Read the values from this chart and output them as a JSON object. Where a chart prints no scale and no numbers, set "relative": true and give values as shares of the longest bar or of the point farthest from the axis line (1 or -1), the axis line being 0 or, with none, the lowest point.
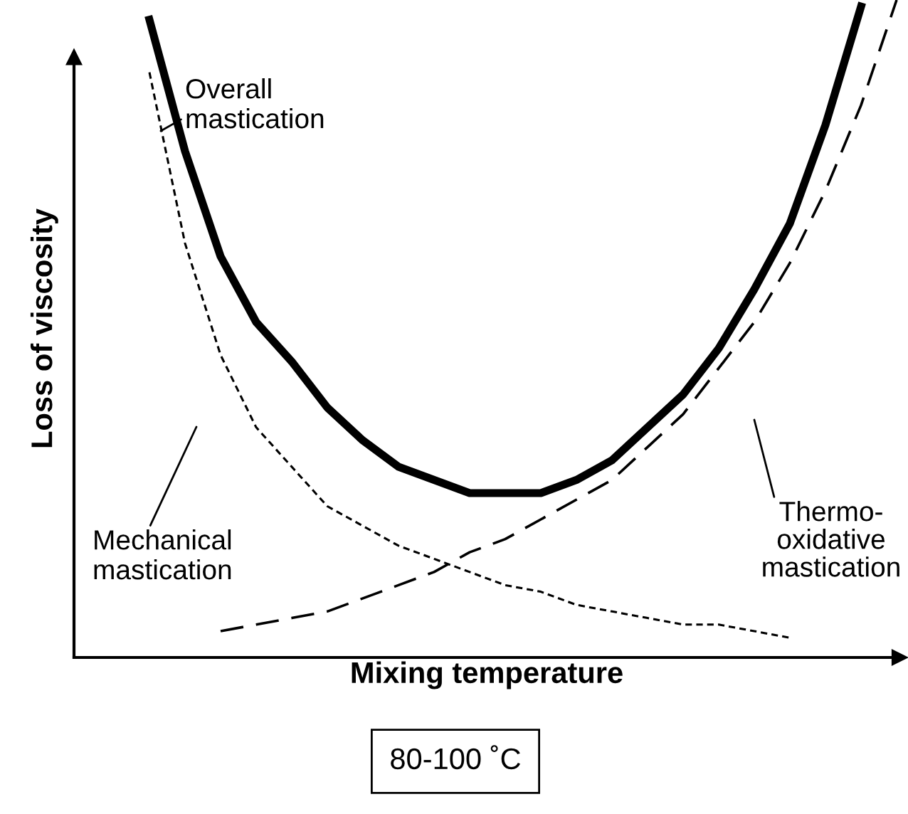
{
  "chart_data": {
    "type": "line",
    "relative": true,
    "xlabel": "Mixing temperature",
    "ylabel": "Loss of viscosity",
    "categories": [
      null,
      null,
      null,
      null,
      null,
      null,
      null,
      null,
      null,
      null,
      null,
      null,
      null,
      null,
      null,
      null,
      null,
      null,
      null,
      null,
      null,
      null,
      null
    ],
    "series": [
      {
        "color": "#000000",
        "line_style": "solid",
        "values": [
          null,
          0.97,
          0.77,
          0.61,
          0.51,
          0.45,
          0.38,
          0.33,
          0.29,
          0.27,
          0.25,
          0.25,
          0.25,
          0.27,
          0.3,
          0.35,
          0.4,
          0.47,
          0.56,
          0.66,
          0.81,
          0.99,
          null
        ]
      },
      {
        "color": "#000000",
        "line_style": "dotted",
        "values": [
          null,
          0.89,
          0.63,
          0.46,
          0.35,
          0.29,
          0.23,
          0.2,
          0.17,
          0.15,
          0.13,
          0.11,
          0.1,
          0.08,
          0.07,
          0.06,
          0.05,
          0.05,
          0.04,
          0.03,
          null,
          null,
          null
        ]
      },
      {
        "color": "#000000",
        "line_style": "dashed",
        "values": [
          null,
          null,
          null,
          0.04,
          0.05,
          0.06,
          0.07,
          0.09,
          0.11,
          0.13,
          0.16,
          0.18,
          0.21,
          0.24,
          0.27,
          0.32,
          0.37,
          0.44,
          0.51,
          0.6,
          0.71,
          0.84,
          1.0
        ]
      }
    ],
    "annotations": [
      "Overall\nmastication",
      "Mechanical\nmastication",
      "Thermo-\noxidative\nmastication",
      "80-100 ˚C"
    ],
    "legend": false
  }
}
